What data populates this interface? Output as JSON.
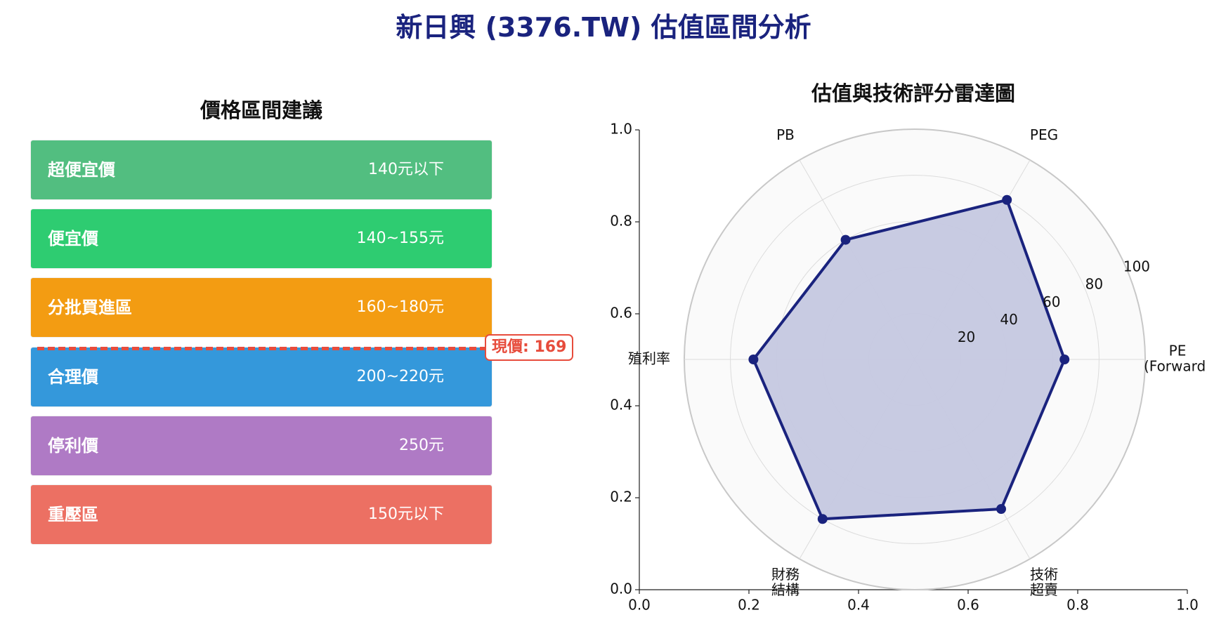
{
  "title": "新日興 (3376.TW) 估值區間分析",
  "price_panel": {
    "title": "價格區間建議",
    "bands": [
      {
        "label": "超便宜價",
        "range": "140元以下",
        "color": "#52be80"
      },
      {
        "label": "便宜價",
        "range": "140~155元",
        "color": "#2ecc71"
      },
      {
        "label": "分批買進區",
        "range": "160~180元",
        "color": "#f39c12"
      },
      {
        "label": "合理價",
        "range": "200~220元",
        "color": "#3498db"
      },
      {
        "label": "停利價",
        "range": "250元",
        "color": "#af7ac5"
      },
      {
        "label": "重壓區",
        "range": "150元以下",
        "color": "#ec7063"
      }
    ],
    "current_price": {
      "label": "現價: 169",
      "value": 169,
      "color": "#e74c3c"
    }
  },
  "chart_data": {
    "type": "radar",
    "title": "估值與技術評分雷達圖",
    "categories": [
      "PE\n(Forward)",
      "PEG",
      "PB",
      "殖利率",
      "財務\n結構",
      "技術\n超賣"
    ],
    "values": [
      65,
      80,
      60,
      70,
      80,
      75
    ],
    "radial_ticks": [
      "20",
      "40",
      "60",
      "80",
      "100"
    ],
    "rlim": [
      0,
      100
    ],
    "fill_color": "#c5c8e0",
    "line_color": "#1a237e",
    "frame_axes": {
      "x_ticks": [
        "0.0",
        "0.2",
        "0.4",
        "0.6",
        "0.8",
        "1.0"
      ],
      "y_ticks": [
        "0.0",
        "0.2",
        "0.4",
        "0.6",
        "0.8",
        "1.0"
      ]
    }
  }
}
